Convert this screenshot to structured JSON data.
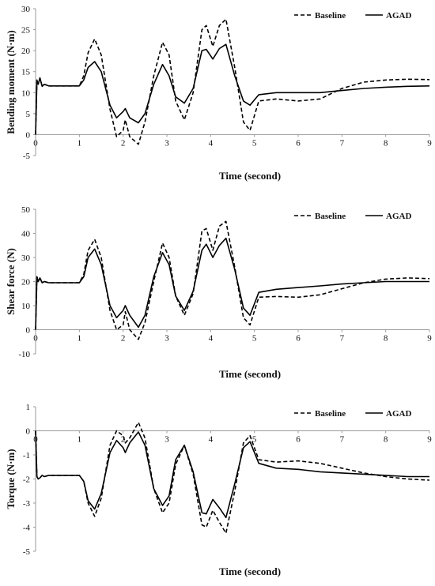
{
  "chart_data": [
    {
      "type": "line",
      "xlabel": "Time (second)",
      "ylabel": "Bending moment (N·m)",
      "xlim": [
        0,
        9
      ],
      "ylim": [
        -5,
        30
      ],
      "xticks": [
        "0",
        "1",
        "2",
        "3",
        "4",
        "5",
        "6",
        "7",
        "8",
        "9"
      ],
      "yticks": [
        "-5",
        "0",
        "5",
        "10",
        "15",
        "20",
        "25",
        "30"
      ],
      "legend_position": "top-right",
      "grid": false,
      "series": [
        {
          "name": "Baseline",
          "style": "dashed",
          "x": [
            0,
            0.03,
            0.06,
            0.1,
            0.15,
            0.2,
            0.3,
            0.5,
            1.0,
            1.1,
            1.2,
            1.35,
            1.5,
            1.7,
            1.85,
            2.0,
            2.05,
            2.15,
            2.35,
            2.5,
            2.7,
            2.9,
            3.05,
            3.2,
            3.4,
            3.6,
            3.8,
            3.9,
            4.05,
            4.2,
            4.35,
            4.55,
            4.75,
            4.9,
            5.1,
            5.5,
            6.0,
            6.5,
            7.0,
            7.5,
            8.0,
            8.5,
            9.0
          ],
          "y": [
            0,
            13,
            12,
            13.5,
            11.5,
            12,
            11.6,
            11.6,
            11.6,
            14,
            19.5,
            22.8,
            19,
            6,
            -0.5,
            1,
            3.5,
            -0.5,
            -2.3,
            3,
            14,
            22,
            19,
            8,
            3.5,
            10,
            25,
            26,
            21,
            26,
            27.5,
            16,
            3,
            1,
            8,
            8.5,
            8,
            8.5,
            11,
            12.5,
            13,
            13.2,
            13.1
          ]
        },
        {
          "name": "AGAD",
          "style": "solid",
          "x": [
            0,
            0.03,
            0.06,
            0.1,
            0.15,
            0.2,
            0.3,
            0.5,
            1.0,
            1.1,
            1.2,
            1.35,
            1.5,
            1.7,
            1.85,
            2.0,
            2.05,
            2.15,
            2.35,
            2.5,
            2.7,
            2.9,
            3.05,
            3.2,
            3.4,
            3.6,
            3.8,
            3.9,
            4.05,
            4.2,
            4.35,
            4.55,
            4.75,
            4.9,
            5.1,
            5.5,
            6.0,
            6.5,
            7.0,
            7.5,
            8.0,
            8.5,
            9.0
          ],
          "y": [
            0,
            13,
            12,
            13.5,
            11.5,
            12,
            11.6,
            11.6,
            11.6,
            13,
            16,
            17.4,
            15,
            7,
            4,
            5.5,
            6.2,
            4,
            2.8,
            5,
            12,
            16.7,
            14,
            9,
            7.5,
            11,
            20,
            20.3,
            18,
            20.5,
            21.5,
            14,
            8,
            7,
            9.5,
            10,
            10,
            10,
            10.5,
            11,
            11.3,
            11.5,
            11.6
          ]
        }
      ]
    },
    {
      "type": "line",
      "xlabel": "Time (second)",
      "ylabel": "Shear force (N)",
      "xlim": [
        0,
        9
      ],
      "ylim": [
        -10,
        50
      ],
      "xticks": [
        "0",
        "1",
        "2",
        "3",
        "4",
        "5",
        "6",
        "7",
        "8",
        "9"
      ],
      "yticks": [
        "-10",
        "0",
        "10",
        "20",
        "30",
        "40",
        "50"
      ],
      "legend_position": "top-right",
      "grid": false,
      "series": [
        {
          "name": "Baseline",
          "style": "dashed",
          "x": [
            0,
            0.03,
            0.06,
            0.1,
            0.15,
            0.2,
            0.3,
            0.5,
            1.0,
            1.1,
            1.2,
            1.35,
            1.5,
            1.7,
            1.85,
            2.0,
            2.05,
            2.15,
            2.35,
            2.5,
            2.7,
            2.9,
            3.05,
            3.2,
            3.4,
            3.6,
            3.8,
            3.9,
            4.05,
            4.2,
            4.35,
            4.55,
            4.75,
            4.9,
            5.1,
            5.5,
            6.0,
            6.5,
            7.0,
            7.5,
            8.0,
            8.5,
            9.0
          ],
          "y": [
            0,
            22,
            20,
            21.5,
            19.5,
            20,
            19.5,
            19.5,
            19.5,
            23,
            33,
            37.5,
            30,
            8,
            0,
            2,
            7.5,
            0,
            -4,
            3,
            20,
            36,
            30,
            14,
            6,
            15,
            41,
            42,
            33,
            43,
            45,
            26,
            5,
            2,
            13.5,
            13.8,
            13.5,
            14.5,
            17,
            19.5,
            21,
            21.5,
            21.2
          ]
        },
        {
          "name": "AGAD",
          "style": "solid",
          "x": [
            0,
            0.03,
            0.06,
            0.1,
            0.15,
            0.2,
            0.3,
            0.5,
            1.0,
            1.1,
            1.2,
            1.35,
            1.5,
            1.7,
            1.85,
            2.0,
            2.05,
            2.15,
            2.35,
            2.5,
            2.7,
            2.9,
            3.05,
            3.2,
            3.4,
            3.6,
            3.8,
            3.9,
            4.05,
            4.2,
            4.35,
            4.55,
            4.75,
            4.9,
            5.1,
            5.5,
            6.0,
            6.5,
            7.0,
            7.5,
            8.0,
            8.5,
            9.0
          ],
          "y": [
            0,
            22,
            20,
            21.5,
            19.5,
            20,
            19.5,
            19.5,
            19.5,
            22,
            30,
            33.5,
            27,
            10,
            5,
            8,
            10,
            6,
            1,
            6,
            22,
            32,
            27,
            14,
            8,
            16,
            33,
            35.5,
            30,
            35,
            38,
            25,
            9,
            6,
            15.5,
            16.8,
            17.5,
            18.2,
            19,
            19.5,
            20,
            20,
            20
          ]
        }
      ]
    },
    {
      "type": "line",
      "xlabel": "Time (second)",
      "ylabel": "Torque (N·m)",
      "xlim": [
        0,
        9
      ],
      "ylim": [
        -5,
        1
      ],
      "xticks": [
        "0",
        "1",
        "2",
        "3",
        "4",
        "5",
        "6",
        "7",
        "8",
        "9"
      ],
      "yticks": [
        "-5",
        "-4",
        "-3",
        "-2",
        "-1",
        "0",
        "1"
      ],
      "legend_position": "top-right",
      "grid": false,
      "series": [
        {
          "name": "Baseline",
          "style": "dashed",
          "x": [
            0,
            0.03,
            0.06,
            0.1,
            0.15,
            0.2,
            0.3,
            0.5,
            1.0,
            1.1,
            1.2,
            1.35,
            1.5,
            1.7,
            1.85,
            2.0,
            2.05,
            2.15,
            2.35,
            2.5,
            2.7,
            2.9,
            3.05,
            3.2,
            3.4,
            3.6,
            3.8,
            3.9,
            4.05,
            4.2,
            4.35,
            4.55,
            4.75,
            4.9,
            5.1,
            5.5,
            6.0,
            6.5,
            7.0,
            7.5,
            8.0,
            8.5,
            9.0
          ],
          "y": [
            0,
            -1.9,
            -2,
            -1.95,
            -1.85,
            -1.9,
            -1.85,
            -1.85,
            -1.85,
            -2.1,
            -3,
            -3.55,
            -2.8,
            -0.6,
            0,
            -0.2,
            -0.5,
            -0.3,
            0.35,
            -0.3,
            -2.4,
            -3.4,
            -3,
            -1.4,
            -0.6,
            -1.8,
            -3.9,
            -4,
            -3.3,
            -3.8,
            -4.25,
            -2.5,
            -0.5,
            -0.2,
            -1.2,
            -1.3,
            -1.25,
            -1.35,
            -1.55,
            -1.75,
            -1.9,
            -2,
            -2.05
          ]
        },
        {
          "name": "AGAD",
          "style": "solid",
          "x": [
            0,
            0.03,
            0.06,
            0.1,
            0.15,
            0.2,
            0.3,
            0.5,
            1.0,
            1.1,
            1.2,
            1.35,
            1.5,
            1.7,
            1.85,
            2.0,
            2.05,
            2.15,
            2.35,
            2.5,
            2.7,
            2.9,
            3.05,
            3.2,
            3.4,
            3.6,
            3.8,
            3.9,
            4.05,
            4.2,
            4.35,
            4.55,
            4.75,
            4.9,
            5.1,
            5.5,
            6.0,
            6.5,
            7.0,
            7.5,
            8.0,
            8.5,
            9.0
          ],
          "y": [
            0,
            -1.9,
            -2,
            -1.95,
            -1.85,
            -1.9,
            -1.85,
            -1.85,
            -1.85,
            -2.1,
            -2.9,
            -3.25,
            -2.6,
            -0.9,
            -0.4,
            -0.7,
            -0.9,
            -0.5,
            -0.05,
            -0.6,
            -2.4,
            -3.1,
            -2.7,
            -1.2,
            -0.6,
            -1.7,
            -3.4,
            -3.45,
            -2.85,
            -3.2,
            -3.6,
            -2.2,
            -0.7,
            -0.45,
            -1.35,
            -1.55,
            -1.6,
            -1.7,
            -1.75,
            -1.8,
            -1.85,
            -1.9,
            -1.9
          ]
        }
      ]
    }
  ]
}
